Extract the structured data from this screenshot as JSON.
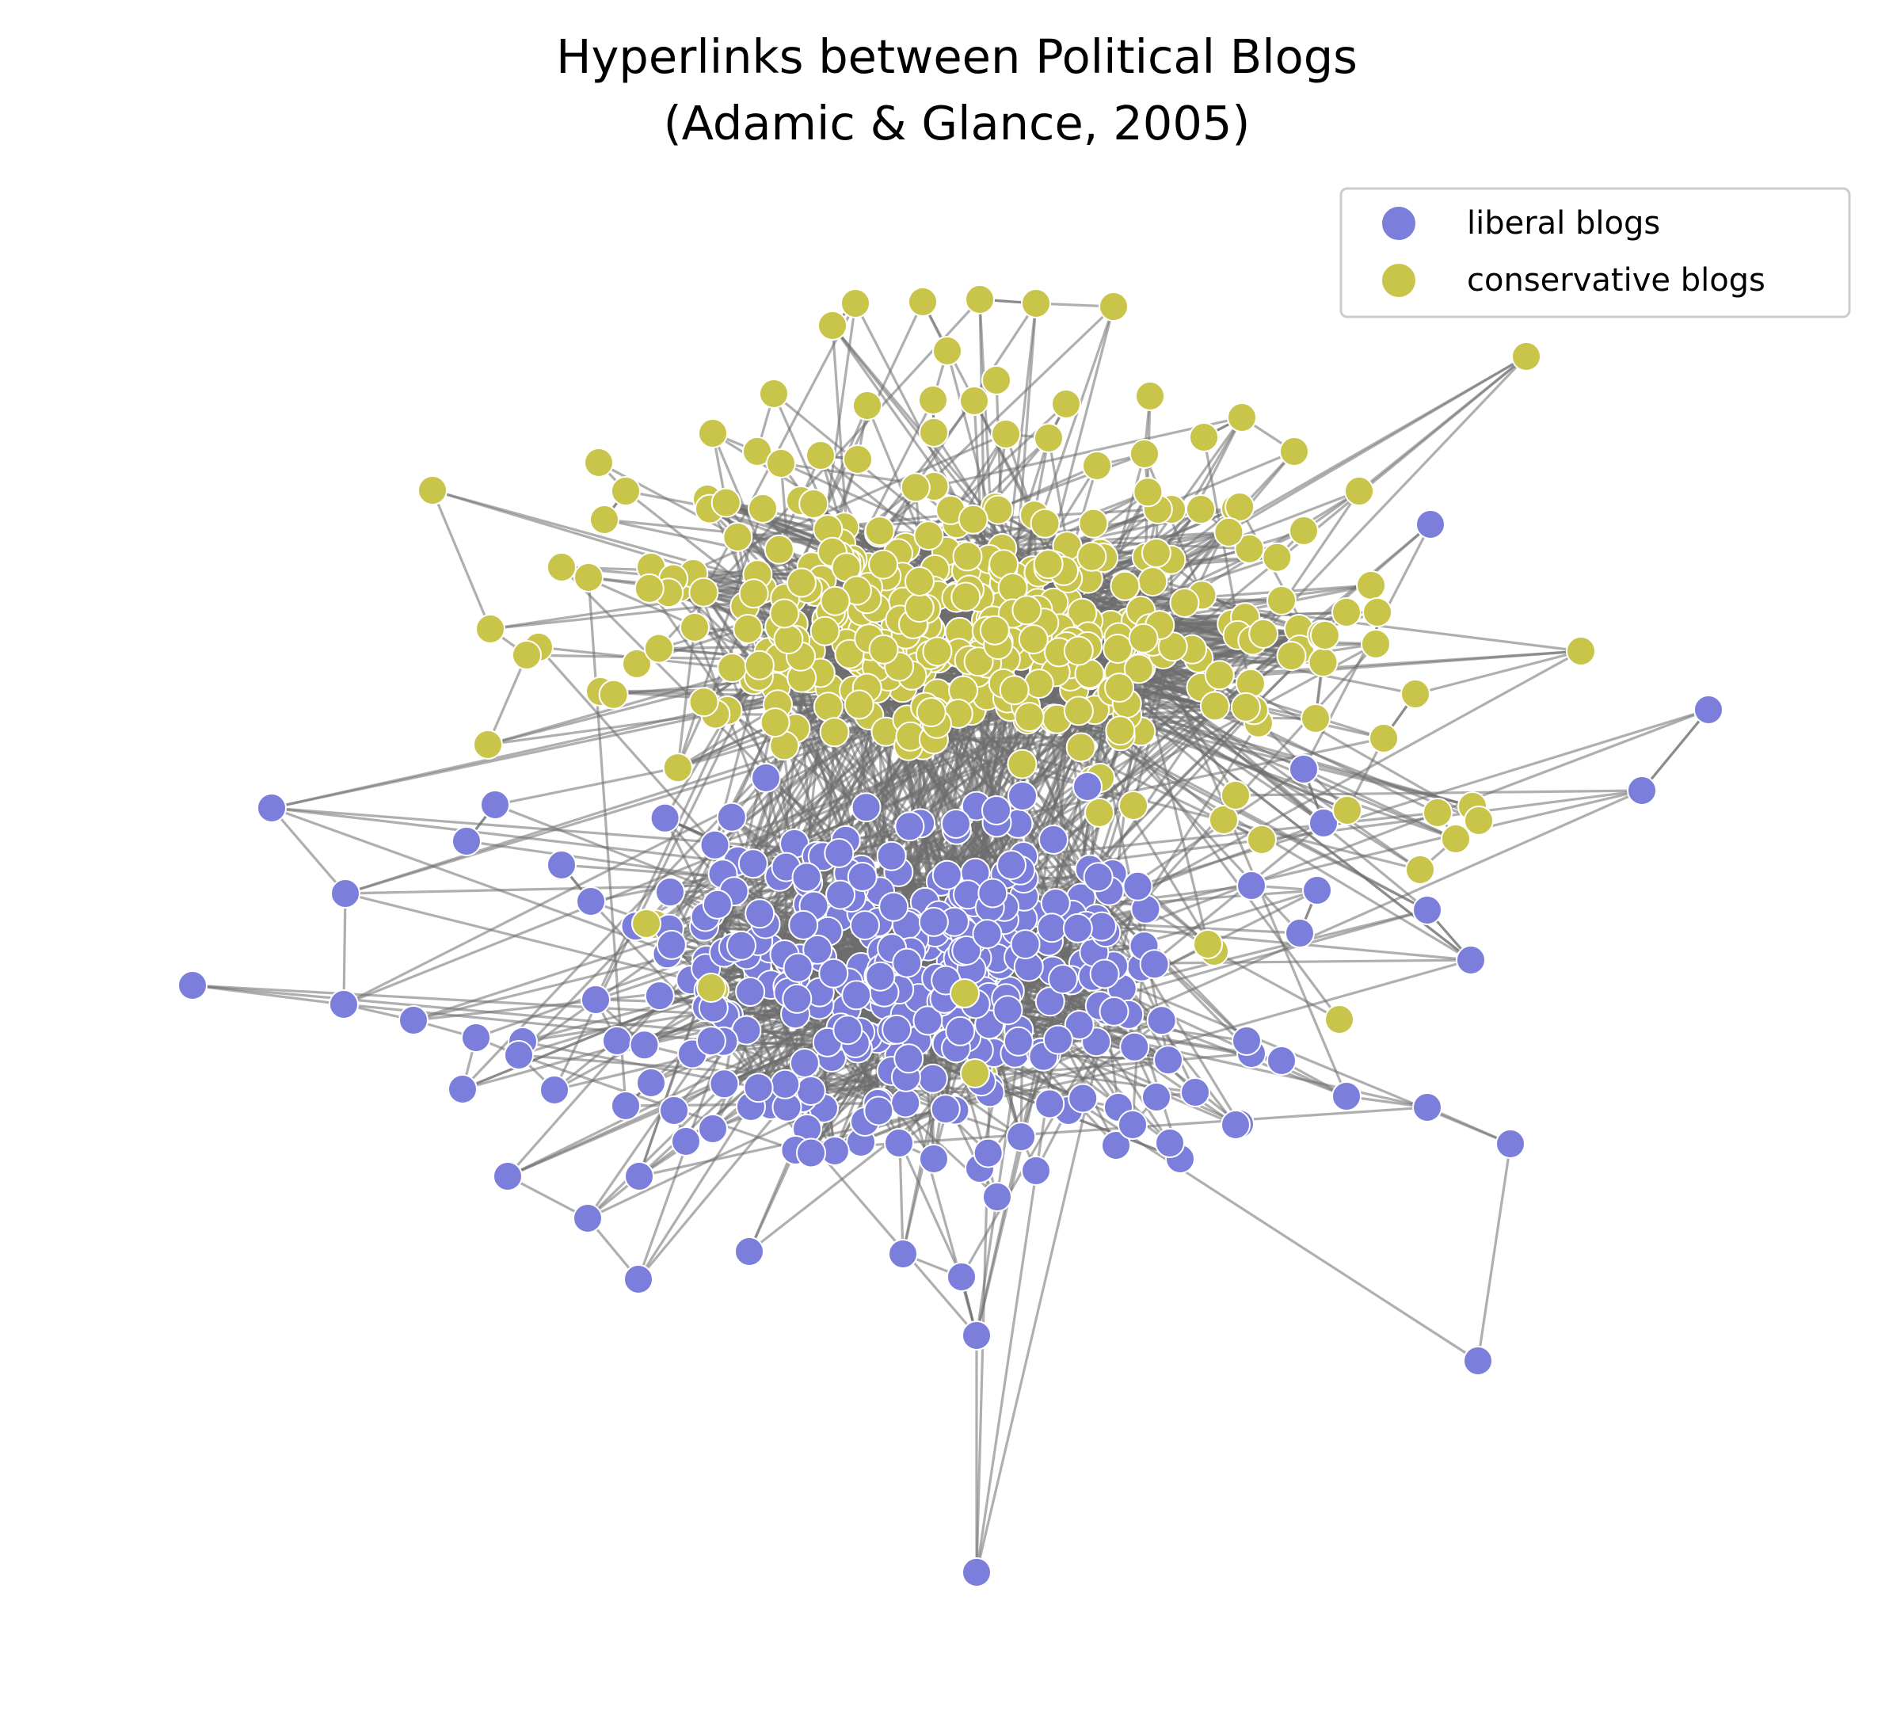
{
  "title": {
    "line1": "Hyperlinks between Political Blogs",
    "line2": "(Adamic & Glance, 2005)"
  },
  "legend": {
    "placement": "top-right",
    "items": [
      {
        "label": "liberal blogs",
        "color": "#7b7fdb"
      },
      {
        "label": "conservative blogs",
        "color": "#c9c44a"
      }
    ]
  },
  "colors": {
    "liberal": "#7b7fdb",
    "conservative": "#c9c44a",
    "edge": "#6e6e6e",
    "node_outline": "#ffffff"
  }
}
